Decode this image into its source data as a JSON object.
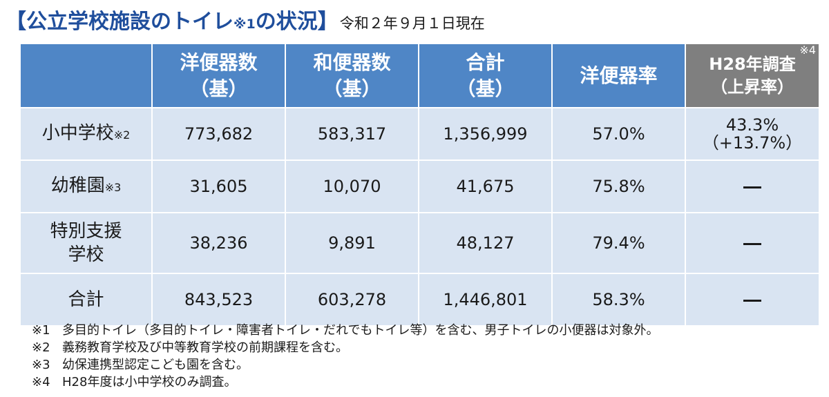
{
  "title": {
    "main_open": "【公立学校施設のトイレ",
    "main_note": "※1",
    "main_close": "の状況】",
    "as_of": "令和２年９月１日現在"
  },
  "table": {
    "headers": {
      "western_l1": "洋便器数",
      "western_l2": "（基）",
      "japanese_l1": "和便器数",
      "japanese_l2": "（基）",
      "total_l1": "合計",
      "total_l2": "（基）",
      "rate": "洋便器率",
      "h28_l1": "H28年調査",
      "h28_l2": "（上昇率）",
      "h28_note": "※4"
    },
    "rows": [
      {
        "label": "小中学校",
        "note": "※2",
        "western": "773,682",
        "japanese": "583,317",
        "total": "1,356,999",
        "rate": "57.0%",
        "h28_l1": "43.3%",
        "h28_l2": "（+13.7%）"
      },
      {
        "label": "幼稚園",
        "note": "※3",
        "western": "31,605",
        "japanese": "10,070",
        "total": "41,675",
        "rate": "75.8%"
      },
      {
        "label_l1": "特別支援",
        "label_l2": "学校",
        "western": "38,236",
        "japanese": "9,891",
        "total": "48,127",
        "rate": "79.4%"
      },
      {
        "label": "合計",
        "western": "843,523",
        "japanese": "603,278",
        "total": "1,446,801",
        "rate": "58.3%"
      }
    ]
  },
  "footnotes": [
    {
      "mark": "※1",
      "text": "多目的トイレ（多目的トイレ・障害者トイレ・だれでもトイレ等）を含む、男子トイレの小便器は対象外。"
    },
    {
      "mark": "※2",
      "text": "義務教育学校及び中等教育学校の前期課程を含む。"
    },
    {
      "mark": "※3",
      "text": "幼保連携型認定こども園を含む。"
    },
    {
      "mark": "※4",
      "text": "H28年度は小中学校のみ調査。"
    }
  ],
  "icons": {
    "dash": "em-dash-icon"
  }
}
